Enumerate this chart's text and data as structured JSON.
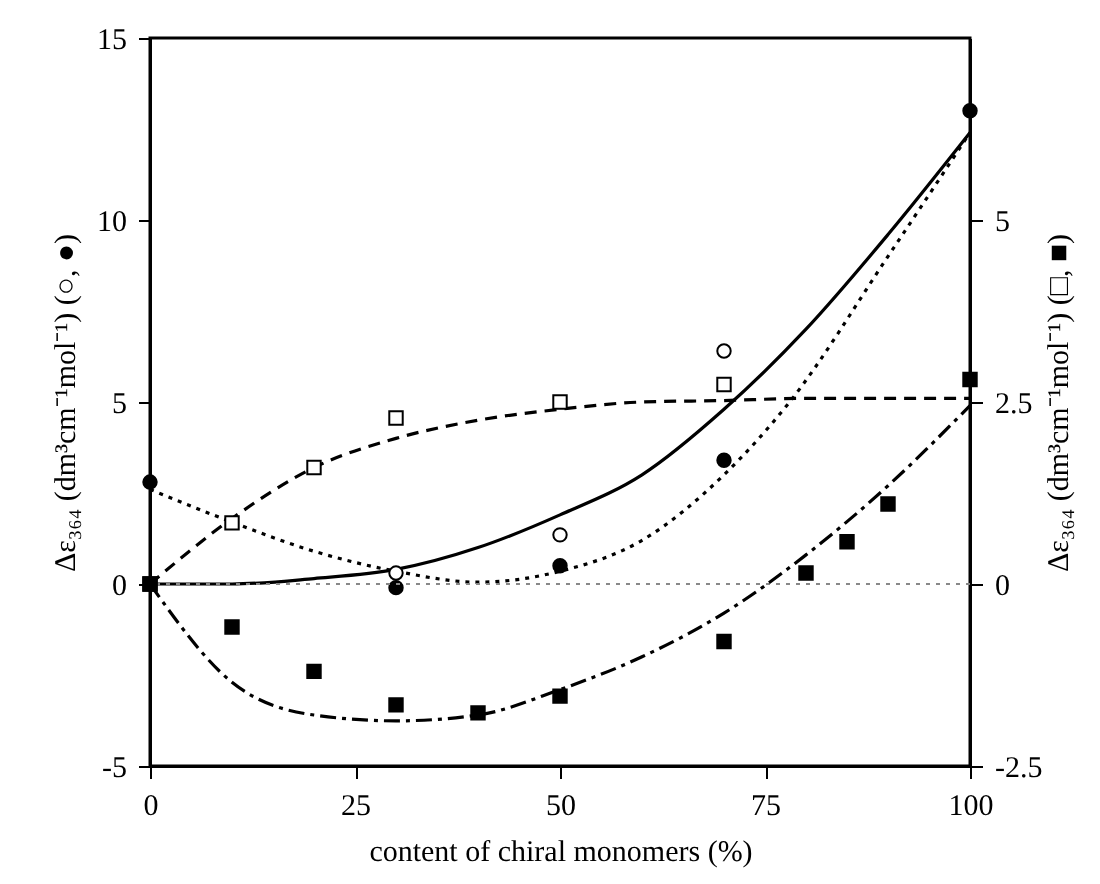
{
  "chart_data": {
    "type": "scatter",
    "xlabel": "content of chiral monomers (%)",
    "ylabel": "Δε₃₆₄ (dm³cm⁻¹mol⁻¹)  (○, ●)",
    "y2label": "Δε₃₆₄ (dm³cm⁻¹mol⁻¹)  (□, ■)",
    "xlim": [
      0,
      100
    ],
    "xticks": [
      0,
      25,
      50,
      75,
      100
    ],
    "ylim": [
      -5,
      15
    ],
    "yticks": [
      -5,
      0,
      5,
      10,
      15
    ],
    "y2lim": [
      -2.5,
      7.5
    ],
    "y2ticks": [
      -2.5,
      0,
      2.5,
      5
    ],
    "grid": false,
    "ref_lines": [
      {
        "axis": "y",
        "value": 0,
        "color": "#888888",
        "line_style": "dotted"
      }
    ],
    "series": [
      {
        "type": "line",
        "axis": "y",
        "color": "#000000",
        "line_style": "solid",
        "x": [
          0,
          10,
          20,
          30,
          40,
          50,
          60,
          70,
          80,
          90,
          100
        ],
        "values": [
          0,
          0,
          0.15,
          0.4,
          1.0,
          1.9,
          3.0,
          4.8,
          7.0,
          9.6,
          12.4
        ]
      },
      {
        "type": "line",
        "axis": "y",
        "color": "#000000",
        "line_style": "dotted",
        "x": [
          0,
          10,
          20,
          30,
          40,
          50,
          60,
          70,
          78,
          90,
          100
        ],
        "values": [
          2.6,
          1.7,
          0.9,
          0.35,
          0.05,
          0.35,
          1.2,
          3.0,
          5.0,
          9.0,
          12.4
        ]
      },
      {
        "type": "line",
        "axis": "y2",
        "color": "#000000",
        "line_style": "dashed",
        "x": [
          0,
          10,
          20,
          30,
          40,
          50,
          60,
          70,
          80,
          90,
          100
        ],
        "values": [
          0,
          0.9,
          1.6,
          2.0,
          2.25,
          2.4,
          2.5,
          2.52,
          2.55,
          2.55,
          2.55
        ]
      },
      {
        "type": "line",
        "axis": "y2",
        "color": "#000000",
        "line_style": "dashdot",
        "x": [
          0,
          10,
          20,
          30,
          40,
          50,
          60,
          70,
          80,
          90,
          100
        ],
        "values": [
          0,
          -1.35,
          -1.8,
          -1.88,
          -1.8,
          -1.45,
          -1.0,
          -0.4,
          0.4,
          1.35,
          2.45
        ]
      },
      {
        "axis": "y",
        "color": "#000000",
        "marker": "circle",
        "x": [
          0,
          30,
          50,
          70,
          100
        ],
        "values": [
          2.8,
          -0.1,
          0.5,
          3.4,
          13.0
        ]
      },
      {
        "axis": "y",
        "color": "#ffffff",
        "marker": "circle",
        "x": [
          30,
          50,
          70
        ],
        "values": [
          0.3,
          1.35,
          6.4
        ]
      },
      {
        "axis": "y2",
        "color": "#ffffff",
        "marker": "square",
        "x": [
          0,
          10,
          20,
          30,
          50,
          70
        ],
        "values": [
          0,
          0.84,
          1.6,
          2.28,
          2.5,
          2.74
        ]
      },
      {
        "axis": "y2",
        "color": "#000000",
        "marker": "square",
        "x": [
          0,
          10,
          20,
          30,
          40,
          50,
          70,
          80,
          85,
          90,
          100
        ],
        "values": [
          0,
          -0.59,
          -1.2,
          -1.66,
          -1.77,
          -1.54,
          -0.79,
          0.15,
          0.58,
          1.1,
          2.81
        ]
      }
    ]
  }
}
